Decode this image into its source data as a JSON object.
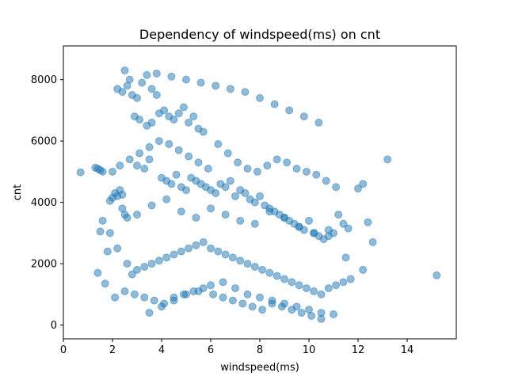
{
  "chart_data": {
    "type": "scatter",
    "title": "Dependency of windspeed(ms) on cnt",
    "xlabel": "windspeed(ms)",
    "ylabel": "cnt",
    "xlim": [
      0,
      16
    ],
    "ylim": [
      -450,
      9100
    ],
    "xticks": [
      0,
      2,
      4,
      6,
      8,
      10,
      12,
      14
    ],
    "yticks": [
      0,
      2000,
      4000,
      6000,
      8000
    ],
    "grid": false,
    "point_color": "#1f77b4",
    "point_alpha": 0.5,
    "series": [
      {
        "x": [
          0.7,
          1.3,
          1.5,
          1.6,
          1.4,
          1.5,
          1.7,
          1.8,
          1.9,
          2.0,
          2.1,
          2.2,
          2.3,
          2.4,
          2.5,
          2.6,
          2.2,
          2.4,
          2.6,
          2.8,
          2.5,
          2.7,
          3.0,
          3.2,
          3.4,
          3.6,
          3.8,
          3.0,
          3.3,
          3.5,
          2.9,
          3.1,
          3.4,
          3.6,
          3.9,
          4.1,
          4.3,
          4.5,
          4.7,
          4.9,
          5.1,
          5.3,
          5.5,
          5.7,
          4.0,
          4.2,
          4.4,
          4.6,
          4.8,
          5.0,
          5.2,
          5.4,
          5.6,
          5.8,
          6.0,
          6.2,
          6.4,
          6.6,
          6.8,
          7.0,
          7.2,
          7.4,
          7.6,
          7.8,
          8.0,
          8.2,
          8.4,
          8.6,
          8.8,
          9.0,
          9.2,
          9.4,
          9.6,
          9.8,
          10.0,
          10.2,
          10.4,
          10.6,
          10.8,
          11.0,
          11.2,
          11.4,
          11.6,
          12.0,
          12.2,
          12.4,
          12.6,
          13.2,
          15.2,
          1.4,
          1.6,
          1.9,
          2.2,
          2.6,
          2.8,
          3.0,
          3.3,
          3.6,
          3.9,
          4.2,
          4.5,
          4.8,
          5.1,
          5.4,
          5.7,
          6.0,
          6.3,
          6.6,
          6.9,
          7.2,
          7.5,
          7.8,
          8.1,
          8.4,
          8.7,
          9.0,
          9.3,
          9.6,
          9.9,
          10.2,
          10.5,
          10.8,
          11.1,
          11.4,
          11.7,
          12.2,
          2.0,
          2.3,
          2.7,
          3.1,
          3.5,
          3.9,
          4.3,
          4.7,
          5.1,
          5.5,
          5.9,
          6.3,
          6.7,
          7.1,
          7.5,
          7.9,
          8.3,
          8.7,
          9.1,
          9.5,
          9.9,
          10.3,
          10.7,
          11.1,
          2.1,
          2.5,
          2.9,
          3.3,
          3.7,
          4.1,
          4.5,
          4.9,
          5.3,
          5.7,
          6.1,
          6.5,
          6.9,
          7.3,
          7.7,
          8.1,
          8.5,
          8.9,
          9.3,
          9.7,
          10.1,
          10.5,
          3.5,
          4.0,
          4.5,
          5.0,
          5.5,
          6.0,
          6.5,
          7.0,
          7.5,
          8.0,
          8.5,
          9.0,
          9.5,
          10.0,
          10.5,
          11.0,
          11.5,
          2.4,
          3.0,
          3.6,
          4.2,
          4.8,
          5.4,
          6.0,
          6.6,
          7.2,
          7.8,
          8.4,
          9.0,
          9.6,
          10.2,
          10.8,
          3.8,
          4.4,
          5.0,
          5.6,
          6.2,
          6.8,
          7.4,
          8.0,
          8.6,
          9.2,
          9.8,
          10.4
        ],
        "y": [
          4980,
          5130,
          5050,
          5000,
          1700,
          3050,
          1350,
          2400,
          4050,
          4150,
          4300,
          4200,
          4400,
          4250,
          3600,
          3500,
          7700,
          7600,
          7800,
          7500,
          8300,
          8000,
          7400,
          7900,
          8150,
          7700,
          7500,
          5200,
          5100,
          5400,
          6800,
          6700,
          6500,
          6600,
          6900,
          7000,
          6800,
          6700,
          6900,
          7100,
          6600,
          6800,
          6400,
          6300,
          4800,
          4700,
          4600,
          4900,
          4500,
          4400,
          4800,
          4700,
          4600,
          4500,
          4400,
          4300,
          4600,
          4500,
          4700,
          4200,
          4400,
          4300,
          4100,
          4000,
          4200,
          3900,
          3800,
          3700,
          3600,
          3500,
          3400,
          3300,
          3200,
          3100,
          3400,
          3000,
          2900,
          2800,
          3100,
          3000,
          3600,
          3300,
          3150,
          4450,
          4600,
          3350,
          2700,
          5400,
          1620,
          5100,
          3400,
          3000,
          2500,
          2000,
          1650,
          1800,
          1900,
          2000,
          2100,
          2200,
          2300,
          2400,
          2500,
          2600,
          2700,
          2500,
          2400,
          2300,
          2200,
          2100,
          2000,
          1900,
          1800,
          1700,
          1600,
          1500,
          1400,
          1300,
          1200,
          1100,
          1000,
          1200,
          1300,
          1400,
          1500,
          1800,
          5000,
          5200,
          5400,
          5600,
          5800,
          6000,
          5900,
          5700,
          5500,
          5300,
          5100,
          5900,
          5600,
          5300,
          5100,
          5000,
          5200,
          5400,
          5300,
          5100,
          5000,
          4900,
          4700,
          4500,
          900,
          1100,
          1000,
          900,
          800,
          700,
          900,
          1000,
          1100,
          1200,
          1000,
          900,
          800,
          700,
          600,
          500,
          700,
          600,
          500,
          400,
          300,
          200,
          400,
          600,
          800,
          1000,
          1100,
          1300,
          1400,
          1200,
          1000,
          900,
          800,
          700,
          600,
          500,
          400,
          350,
          2200,
          3800,
          3600,
          3900,
          4100,
          3700,
          3500,
          3800,
          3600,
          3400,
          3300,
          3700,
          3500,
          3200,
          3000,
          2900,
          8200,
          8100,
          8000,
          7900,
          7800,
          7700,
          7600,
          7400,
          7200,
          7000,
          6800,
          6600
        ]
      }
    ]
  }
}
